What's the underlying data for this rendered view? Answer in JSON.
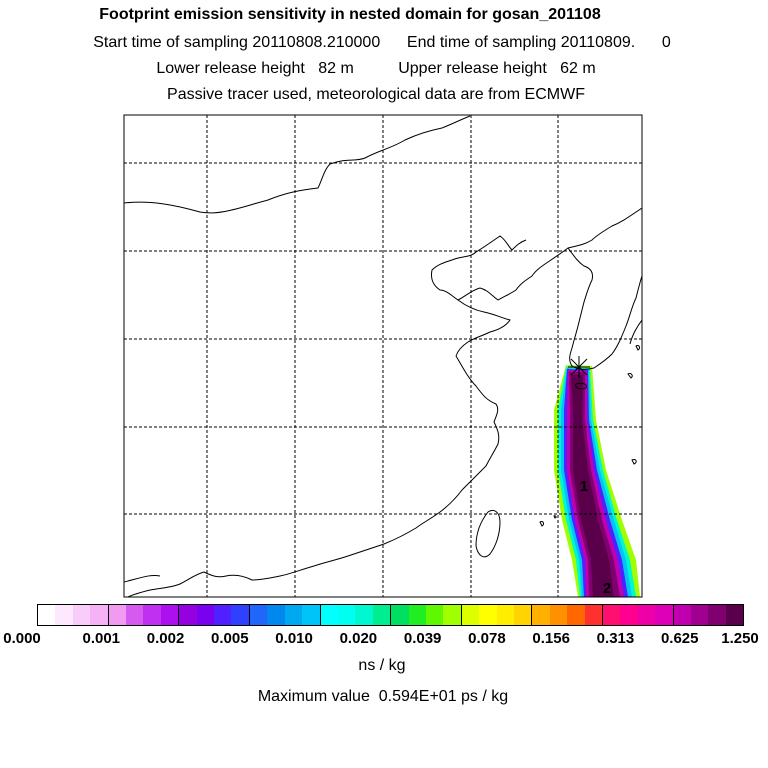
{
  "header": {
    "title": "Footprint emission sensitivity in nested domain for gosan_201108",
    "sampling": "Start time of sampling 20110808.210000      End time of sampling 20110809.      0",
    "release": "Lower release height   82 m          Upper release height   62 m",
    "tracer": "Passive tracer used, meteorological data are from ECMWF"
  },
  "map": {
    "labels": [
      "1",
      "2"
    ],
    "receptor_marker": "star-marker"
  },
  "colorbar": {
    "ticks": [
      "0.000",
      "0.001",
      "0.002",
      "0.005",
      "0.010",
      "0.020",
      "0.039",
      "0.078",
      "0.156",
      "0.313",
      "0.625",
      "1.250"
    ],
    "colors": [
      "#ffffff",
      "#fde8fd",
      "#f9cdf9",
      "#f5b2f5",
      "#f19af1",
      "#d55af0",
      "#c030f0",
      "#ad10ee",
      "#9400e0",
      "#7a00f0",
      "#5020ff",
      "#3040ff",
      "#2066f8",
      "#0088ee",
      "#00a8f0",
      "#00c4f8",
      "#00ffff",
      "#00fff0",
      "#00f8d0",
      "#00ee90",
      "#00e060",
      "#20ee20",
      "#60f800",
      "#a0ff00",
      "#ddff00",
      "#ffff00",
      "#ffee00",
      "#ffd400",
      "#ffb000",
      "#ff9000",
      "#ff6800",
      "#ff3030",
      "#ff1070",
      "#ff0090",
      "#ee00a8",
      "#dd00b8",
      "#c000b0",
      "#a00090",
      "#800070",
      "#5a004a"
    ],
    "units": "ns / kg"
  },
  "footer": {
    "max_value": "Maximum value  0.594E+01 ps / kg"
  }
}
